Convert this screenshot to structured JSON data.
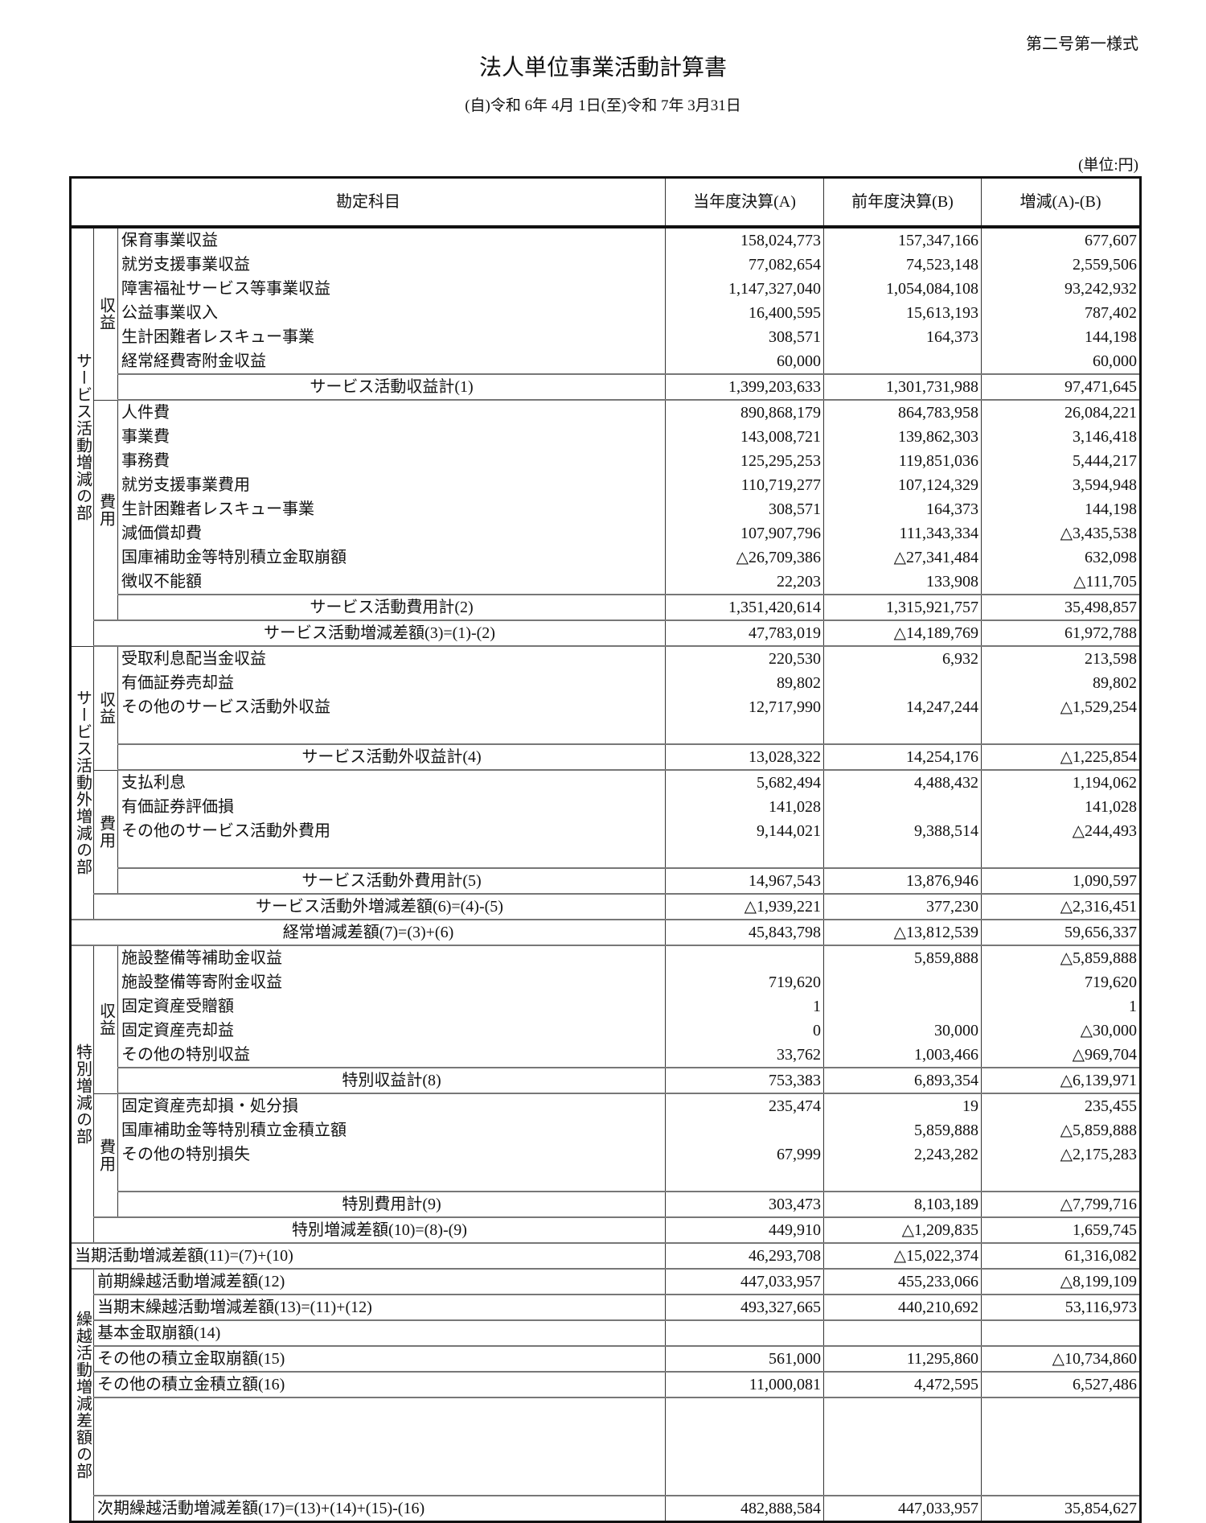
{
  "header": {
    "form_no": "第二号第一様式",
    "title": "法人単位事業活動計算書",
    "period": "(自)令和 6年 4月 1日(至)令和 7年 3月31日",
    "unit": "(単位:円)"
  },
  "columns": [
    "勘定科目",
    "当年度決算(A)",
    "前年度決算(B)",
    "増減(A)-(B)"
  ],
  "sections": [
    {
      "label": "サービス活動増減の部",
      "groups": [
        {
          "label": "収益",
          "items": [
            [
              "保育事業収益",
              "158,024,773",
              "157,347,166",
              "677,607"
            ],
            [
              "就労支援事業収益",
              "77,082,654",
              "74,523,148",
              "2,559,506"
            ],
            [
              "障害福祉サービス等事業収益",
              "1,147,327,040",
              "1,054,084,108",
              "93,242,932"
            ],
            [
              "公益事業収入",
              "16,400,595",
              "15,613,193",
              "787,402"
            ],
            [
              "生計困難者レスキュー事業",
              "308,571",
              "164,373",
              "144,198"
            ],
            [
              "経常経費寄附金収益",
              "60,000",
              "",
              "60,000"
            ]
          ],
          "subtotal": [
            "サービス活動収益計(1)",
            "1,399,203,633",
            "1,301,731,988",
            "97,471,645"
          ]
        },
        {
          "label": "費用",
          "items": [
            [
              "人件費",
              "890,868,179",
              "864,783,958",
              "26,084,221"
            ],
            [
              "事業費",
              "143,008,721",
              "139,862,303",
              "3,146,418"
            ],
            [
              "事務費",
              "125,295,253",
              "119,851,036",
              "5,444,217"
            ],
            [
              "就労支援事業費用",
              "110,719,277",
              "107,124,329",
              "3,594,948"
            ],
            [
              "生計困難者レスキュー事業",
              "308,571",
              "164,373",
              "144,198"
            ],
            [
              "減価償却費",
              "107,907,796",
              "111,343,334",
              "△3,435,538"
            ],
            [
              "国庫補助金等特別積立金取崩額",
              "△26,709,386",
              "△27,341,484",
              "632,098"
            ],
            [
              "徴収不能額",
              "22,203",
              "133,908",
              "△111,705"
            ]
          ],
          "subtotal": [
            "サービス活動費用計(2)",
            "1,351,420,614",
            "1,315,921,757",
            "35,498,857"
          ]
        }
      ],
      "difference": [
        "サービス活動増減差額(3)=(1)-(2)",
        "47,783,019",
        "△14,189,769",
        "61,972,788"
      ]
    },
    {
      "label": "サービス活動外増減の部",
      "groups": [
        {
          "label": "収益",
          "items": [
            [
              "受取利息配当金収益",
              "220,530",
              "6,932",
              "213,598"
            ],
            [
              "有価証券売却益",
              "89,802",
              "",
              "89,802"
            ],
            [
              "その他のサービス活動外収益",
              "12,717,990",
              "14,247,244",
              "△1,529,254"
            ]
          ],
          "subtotal": [
            "サービス活動外収益計(4)",
            "13,028,322",
            "14,254,176",
            "△1,225,854"
          ]
        },
        {
          "label": "費用",
          "items": [
            [
              "支払利息",
              "5,682,494",
              "4,488,432",
              "1,194,062"
            ],
            [
              "有価証券評価損",
              "141,028",
              "",
              "141,028"
            ],
            [
              "その他のサービス活動外費用",
              "9,144,021",
              "9,388,514",
              "△244,493"
            ]
          ],
          "subtotal": [
            "サービス活動外費用計(5)",
            "14,967,543",
            "13,876,946",
            "1,090,597"
          ]
        }
      ],
      "difference": [
        "サービス活動外増減差額(6)=(4)-(5)",
        "△1,939,221",
        "377,230",
        "△2,316,451"
      ]
    },
    {
      "label": "特別増減の部",
      "groups": [
        {
          "label": "収益",
          "items": [
            [
              "施設整備等補助金収益",
              "",
              "5,859,888",
              "△5,859,888"
            ],
            [
              "施設整備等寄附金収益",
              "719,620",
              "",
              "719,620"
            ],
            [
              "固定資産受贈額",
              "1",
              "",
              "1"
            ],
            [
              "固定資産売却益",
              "0",
              "30,000",
              "△30,000"
            ],
            [
              "その他の特別収益",
              "33,762",
              "1,003,466",
              "△969,704"
            ]
          ],
          "subtotal": [
            "特別収益計(8)",
            "753,383",
            "6,893,354",
            "△6,139,971"
          ]
        },
        {
          "label": "費用",
          "items": [
            [
              "固定資産売却損・処分損",
              "235,474",
              "19",
              "235,455"
            ],
            [
              "国庫補助金等特別積立金積立額",
              "",
              "5,859,888",
              "△5,859,888"
            ],
            [
              "その他の特別損失",
              "67,999",
              "2,243,282",
              "△2,175,283"
            ]
          ],
          "subtotal": [
            "特別費用計(9)",
            "303,473",
            "8,103,189",
            "△7,799,716"
          ]
        }
      ],
      "difference": [
        "特別増減差額(10)=(8)-(9)",
        "449,910",
        "△1,209,835",
        "1,659,745"
      ]
    }
  ],
  "ordinary": [
    "経常増減差額(7)=(3)+(6)",
    "45,843,798",
    "△13,812,539",
    "59,656,337"
  ],
  "current": [
    "当期活動増減差額(11)=(7)+(10)",
    "46,293,708",
    "△15,022,374",
    "61,316,082"
  ],
  "carryover": {
    "label": "繰越活動増減差額の部",
    "items": [
      [
        "前期繰越活動増減差額(12)",
        "447,033,957",
        "455,233,066",
        "△8,199,109"
      ],
      [
        "当期末繰越活動増減差額(13)=(11)+(12)",
        "493,327,665",
        "440,210,692",
        "53,116,973"
      ],
      [
        "基本金取崩額(14)",
        "",
        "",
        ""
      ],
      [
        "その他の積立金取崩額(15)",
        "561,000",
        "11,295,860",
        "△10,734,860"
      ],
      [
        "その他の積立金積立額(16)",
        "11,000,081",
        "4,472,595",
        "6,527,486"
      ]
    ],
    "final": [
      "次期繰越活動増減差額(17)=(13)+(14)+(15)-(16)",
      "482,888,584",
      "447,033,957",
      "35,854,627"
    ]
  }
}
